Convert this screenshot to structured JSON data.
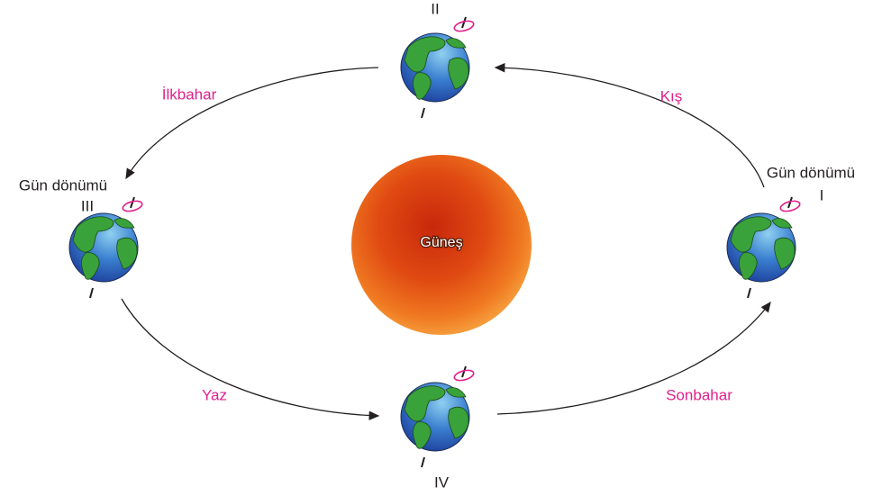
{
  "sun": {
    "label": "Güneş"
  },
  "earths": [
    {
      "label": "Gün dönümü",
      "numeral": "I"
    },
    {
      "numeral": "II"
    },
    {
      "label": "Gün dönümü",
      "numeral": "III"
    },
    {
      "numeral": "IV"
    }
  ],
  "seasons": [
    "İlkbahar",
    "Kış",
    "Yaz",
    "Sonbahar"
  ]
}
